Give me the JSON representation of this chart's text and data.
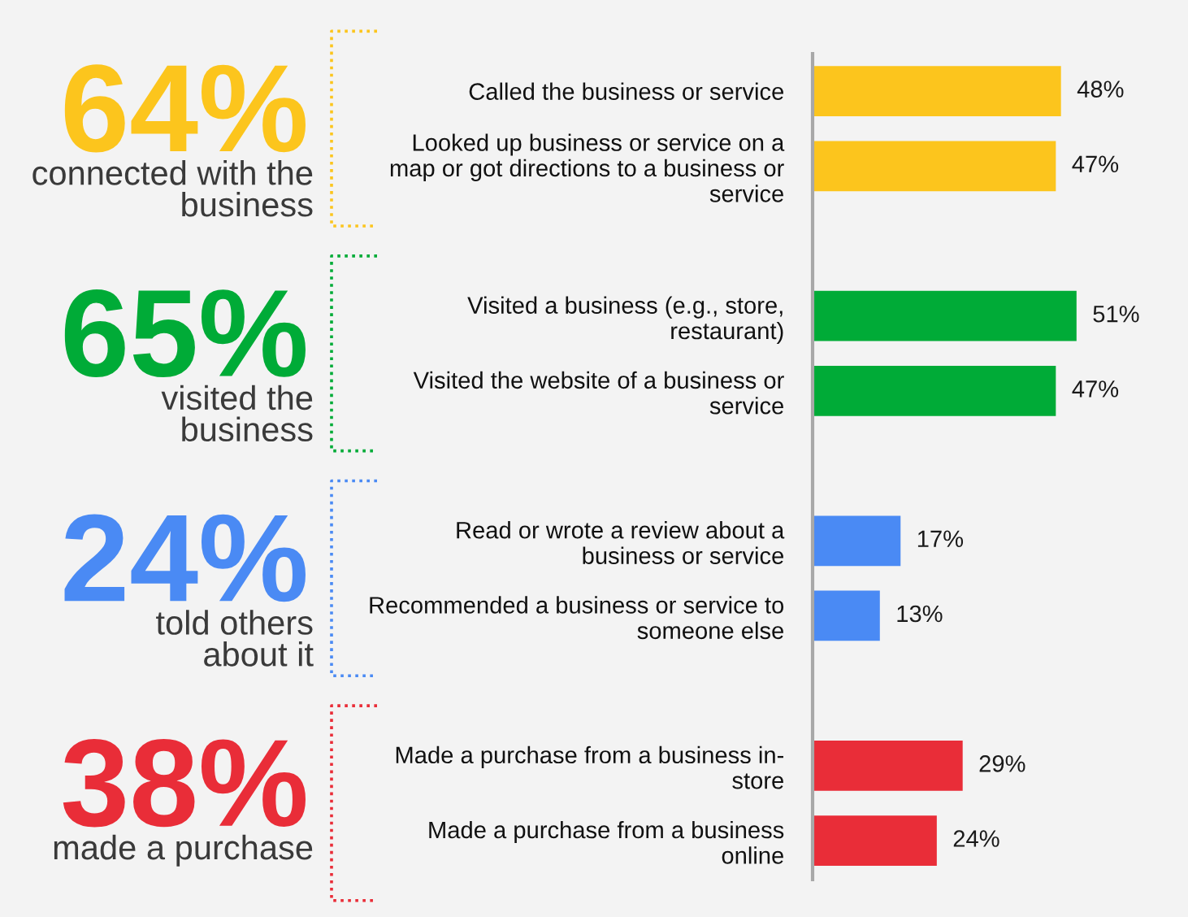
{
  "chart_data": {
    "type": "bar",
    "orientation": "horizontal",
    "categories": [
      "Called the business or service",
      "Looked up business or service on a\nmap or got directions to a business or\nservice",
      "Visited a business (e.g., store,\nrestaurant)",
      "Visited the website of a business or\nservice",
      "Read or wrote a review about a\nbusiness or service",
      "Recommended a business or service to\nsomeone else",
      "Made a purchase from a business in-\nstore",
      "Made a purchase from a business\nonline"
    ],
    "values": [
      48,
      47,
      51,
      47,
      17,
      13,
      29,
      24
    ],
    "colors": [
      "#fcc51d",
      "#fcc51d",
      "#00ab37",
      "#00ab37",
      "#4a8af4",
      "#4a8af4",
      "#e92d38",
      "#e92d38"
    ],
    "value_labels": [
      "48%",
      "47%",
      "51%",
      "47%",
      "17%",
      "13%",
      "29%",
      "24%"
    ],
    "annotations": [
      "64%",
      "connected with the\nbusiness",
      "65%",
      "visited the\nbusiness",
      "24%",
      "told others\nabout it",
      "38%",
      "made a purchase"
    ]
  }
}
